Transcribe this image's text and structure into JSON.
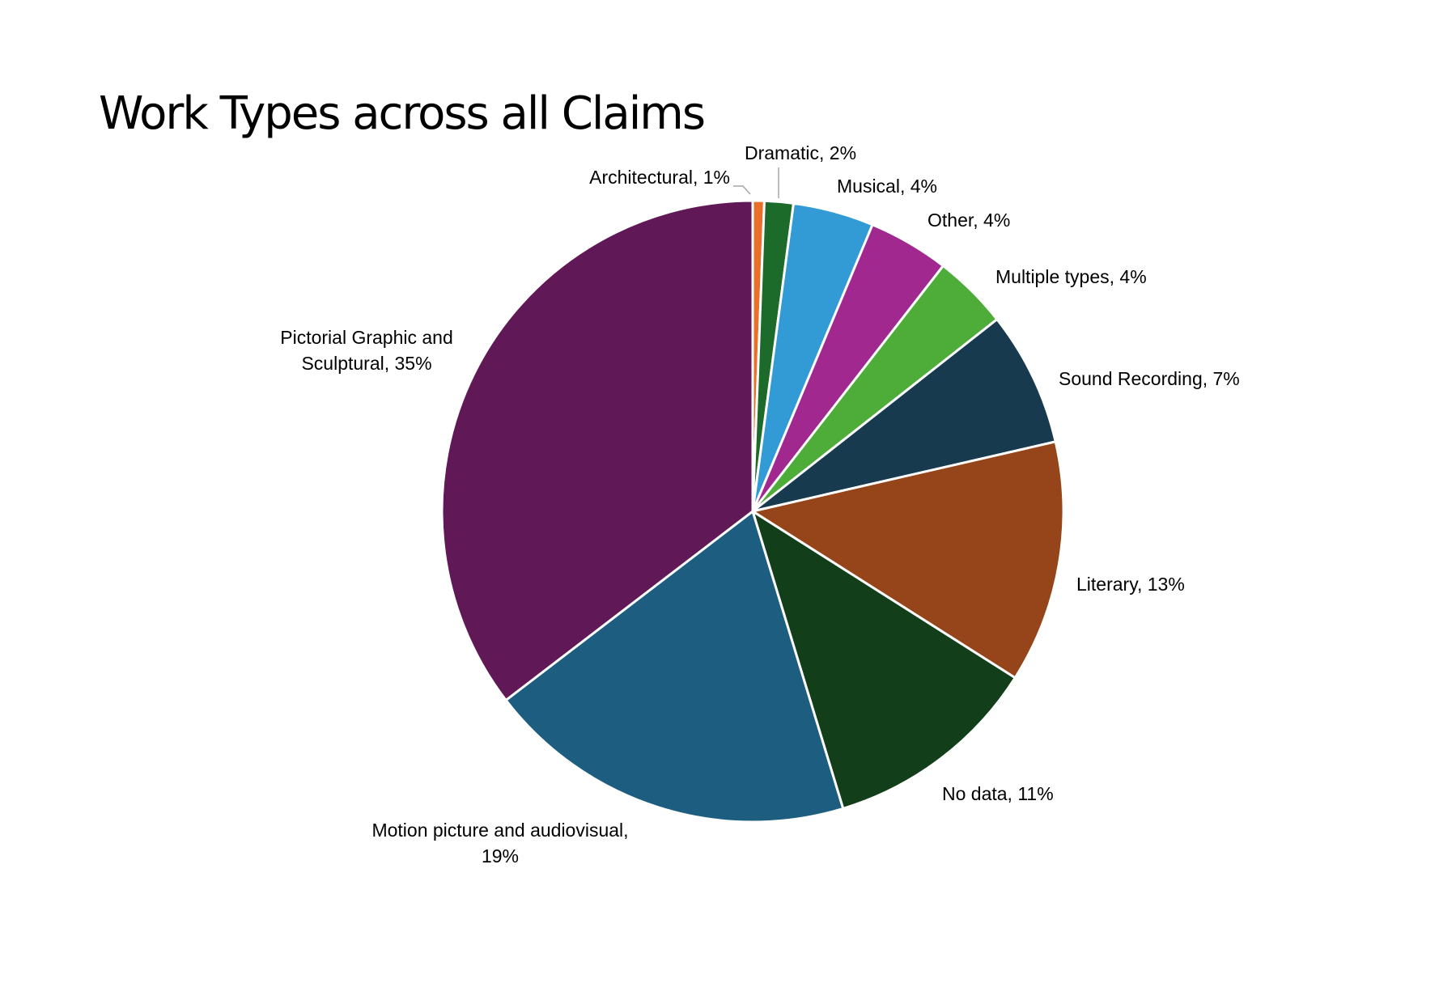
{
  "chart_data": {
    "type": "pie",
    "title": "Work Types across all Claims",
    "start_angle_deg": 0,
    "direction": "clockwise",
    "slices": [
      {
        "name": "Architectural",
        "value": 0.6,
        "label": "Architectural, 1%",
        "color": "#e8702a"
      },
      {
        "name": "Dramatic",
        "value": 1.5,
        "label": "Dramatic, 2%",
        "color": "#1d6b2a"
      },
      {
        "name": "Musical",
        "value": 4.2,
        "label": "Musical, 4%",
        "color": "#329bd6"
      },
      {
        "name": "Other",
        "value": 4.2,
        "label": "Other, 4%",
        "color": "#a0288f"
      },
      {
        "name": "Multiple types",
        "value": 3.9,
        "label": "Multiple types, 4%",
        "color": "#4eac38"
      },
      {
        "name": "Sound Recording",
        "value": 7.0,
        "label": "Sound Recording, 7%",
        "color": "#173a4e"
      },
      {
        "name": "Literary",
        "value": 12.6,
        "label": "Literary, 13%",
        "color": "#964419"
      },
      {
        "name": "No data",
        "value": 11.3,
        "label": "No data, 11%",
        "color": "#123f1a"
      },
      {
        "name": "Motion picture and audiovisual",
        "value": 19.3,
        "label": "Motion picture and audiovisual, 19%",
        "color": "#1d5e80"
      },
      {
        "name": "Pictorial Graphic and Sculptural",
        "value": 35.4,
        "label": "Pictorial Graphic and Sculptural, 35%",
        "color": "#611856"
      }
    ]
  }
}
